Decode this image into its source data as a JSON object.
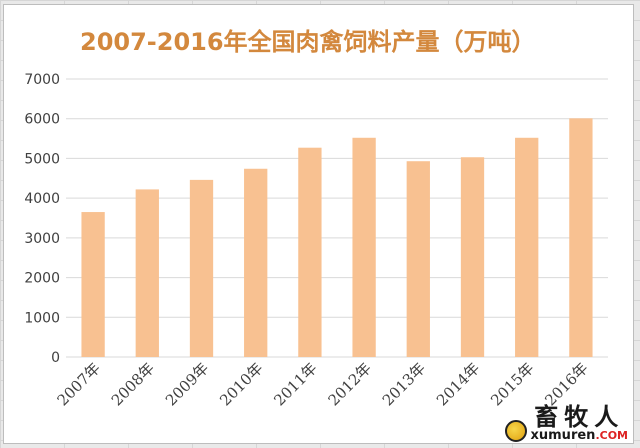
{
  "chart_data": {
    "type": "bar",
    "title": "2007-2016年全国肉禽饲料产量（万吨）",
    "categories": [
      "2007年",
      "2008年",
      "2009年",
      "2010年",
      "2011年",
      "2012年",
      "2013年",
      "2014年",
      "2015年",
      "2016年"
    ],
    "values": [
      3650,
      4220,
      4460,
      4740,
      5270,
      5520,
      4930,
      5030,
      5520,
      6010
    ],
    "ylim": [
      0,
      7000
    ],
    "yticks": [
      "0",
      "1000",
      "2000",
      "3000",
      "4000",
      "5000",
      "6000",
      "7000"
    ],
    "grid": true,
    "legend": "none",
    "colors": {
      "bar": "#f8c191",
      "grid": "#d9d9d9",
      "axis_text": "#404040",
      "title": "#d3883d"
    }
  },
  "watermark": {
    "chinese": "畜牧人",
    "domain": "xumuren",
    "tld": ".COM"
  }
}
